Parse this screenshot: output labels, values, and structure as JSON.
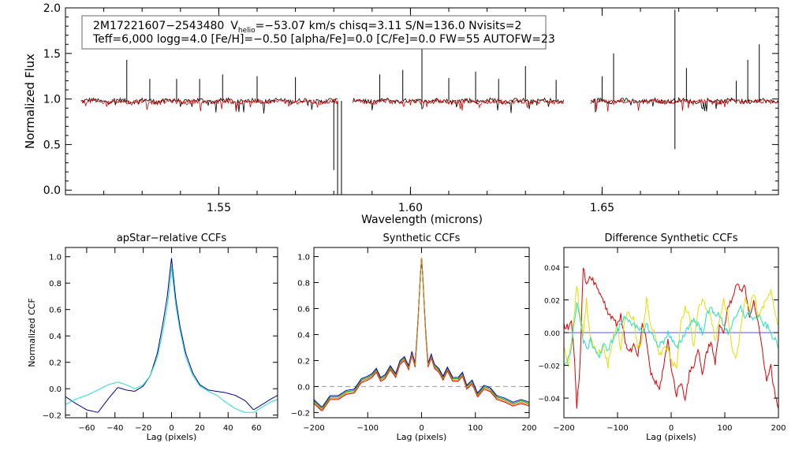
{
  "header": {
    "line1_id": "2M17221607−2543480",
    "line1_v": "V",
    "line1_v_sub": "helio",
    "line1_rest": "=−53.07 km/s  chisq=3.11  S/N=136.0  Nvisits=2",
    "line2": "Teff=6,000 logg=4.0 [Fe/H]=−0.50 [alpha/Fe]=0.0 [C/Fe]=0.0 FW=55 AUTOFW=23"
  },
  "chart_data": [
    {
      "type": "line",
      "title": "",
      "xlabel": "Wavelength (microns)",
      "ylabel": "Normalized Flux",
      "xlim": [
        1.51,
        1.696
      ],
      "ylim": [
        -0.05,
        2.0
      ],
      "xticks": [
        "1.55",
        "1.60",
        "1.65"
      ],
      "xtick_values": [
        1.55,
        1.6,
        1.65
      ],
      "yticks": [
        "0.0",
        "0.5",
        "1.0",
        "1.5",
        "2.0"
      ],
      "ytick_values": [
        0.0,
        0.5,
        1.0,
        1.5,
        2.0
      ],
      "chips": [
        [
          1.514,
          1.581
        ],
        [
          1.585,
          1.64
        ],
        [
          1.647,
          1.696
        ]
      ],
      "series": [
        {
          "color": "#000000",
          "baseline": 0.98
        },
        {
          "color": "#dd0000",
          "baseline": 0.97
        }
      ],
      "emission_spikes": [
        [
          1.526,
          1.43
        ],
        [
          1.532,
          1.22
        ],
        [
          1.539,
          1.22
        ],
        [
          1.545,
          1.22
        ],
        [
          1.551,
          1.27
        ],
        [
          1.56,
          1.25
        ],
        [
          1.57,
          1.24
        ],
        [
          1.592,
          1.27
        ],
        [
          1.598,
          1.32
        ],
        [
          1.603,
          1.55
        ],
        [
          1.61,
          1.23
        ],
        [
          1.617,
          1.3
        ],
        [
          1.623,
          1.22
        ],
        [
          1.63,
          1.36
        ],
        [
          1.638,
          1.21
        ],
        [
          1.65,
          1.25
        ],
        [
          1.653,
          1.5
        ],
        [
          1.669,
          1.98
        ],
        [
          1.672,
          1.34
        ],
        [
          1.685,
          1.2
        ],
        [
          1.688,
          1.43
        ],
        [
          1.691,
          1.6
        ]
      ],
      "absorption_spikes": [
        [
          1.581,
          -0.05
        ],
        [
          1.582,
          -0.05
        ],
        [
          1.58,
          0.22
        ],
        [
          1.669,
          0.45
        ]
      ]
    },
    {
      "type": "line",
      "title": "apStar−relative CCFs",
      "xlabel": "Lag (pixels)",
      "ylabel": "Normalized CCF",
      "xlim": [
        -75,
        75
      ],
      "ylim": [
        -0.22,
        1.07
      ],
      "xticks": [
        "−60",
        "−40",
        "−20",
        "0",
        "20",
        "40",
        "60"
      ],
      "xtick_values": [
        -60,
        -40,
        -20,
        0,
        20,
        40,
        60
      ],
      "yticks": [
        "−0.2",
        "0.0",
        "0.2",
        "0.4",
        "0.6",
        "0.8",
        "1.0"
      ],
      "ytick_values": [
        -0.2,
        0.0,
        0.2,
        0.4,
        0.6,
        0.8,
        1.0
      ],
      "series": [
        {
          "color": "#00008b",
          "x": [
            -75,
            -68,
            -60,
            -52,
            -45,
            -38,
            -32,
            -26,
            -20,
            -15,
            -10,
            -6,
            -3,
            -1,
            0,
            1,
            3,
            6,
            10,
            15,
            20,
            26,
            32,
            38,
            45,
            52,
            58,
            64,
            70,
            75
          ],
          "y": [
            -0.06,
            -0.11,
            -0.16,
            -0.18,
            -0.08,
            0.01,
            -0.01,
            -0.02,
            0.02,
            0.1,
            0.27,
            0.5,
            0.7,
            0.9,
            0.99,
            0.88,
            0.68,
            0.47,
            0.27,
            0.12,
            0.03,
            -0.01,
            -0.02,
            -0.03,
            -0.05,
            -0.09,
            -0.16,
            -0.12,
            -0.08,
            -0.05
          ]
        },
        {
          "color": "#20e0d0",
          "x": [
            -75,
            -68,
            -60,
            -52,
            -45,
            -38,
            -32,
            -26,
            -20,
            -15,
            -10,
            -6,
            -3,
            -1,
            0,
            1,
            3,
            6,
            10,
            15,
            20,
            26,
            32,
            38,
            45,
            52,
            58,
            64,
            70,
            75
          ],
          "y": [
            -0.12,
            -0.08,
            -0.05,
            -0.01,
            0.03,
            0.05,
            0.03,
            0.0,
            0.03,
            0.1,
            0.24,
            0.44,
            0.63,
            0.8,
            0.93,
            0.82,
            0.63,
            0.44,
            0.24,
            0.1,
            0.02,
            -0.02,
            -0.05,
            -0.1,
            -0.15,
            -0.18,
            -0.18,
            -0.14,
            -0.1,
            -0.08
          ]
        }
      ]
    },
    {
      "type": "line",
      "title": "Synthetic CCFs",
      "xlabel": "Lag (pixels)",
      "ylabel": "",
      "xlim": [
        -200,
        200
      ],
      "ylim": [
        -0.24,
        1.07
      ],
      "xticks": [
        "−200",
        "−100",
        "0",
        "100",
        "200"
      ],
      "xtick_values": [
        -200,
        -100,
        0,
        100,
        200
      ],
      "yticks": [
        "−0.2",
        "0.0",
        "0.2",
        "0.4",
        "0.6",
        "0.8",
        "1.0"
      ],
      "ytick_values": [
        -0.2,
        0.0,
        0.2,
        0.4,
        0.6,
        0.8,
        1.0
      ],
      "zero_line": 0.0,
      "series": [
        {
          "color": "#dd0000",
          "x": [
            -200,
            -185,
            -170,
            -155,
            -140,
            -125,
            -112,
            -100,
            -92,
            -84,
            -76,
            -68,
            -58,
            -48,
            -40,
            -32,
            -24,
            -18,
            -12,
            -7,
            -3,
            0,
            3,
            7,
            12,
            18,
            24,
            32,
            40,
            48,
            58,
            68,
            76,
            84,
            94,
            104,
            116,
            128,
            140,
            155,
            170,
            185,
            200
          ],
          "y": [
            -0.13,
            -0.19,
            -0.1,
            -0.1,
            -0.06,
            -0.05,
            0.03,
            0.05,
            0.07,
            0.11,
            0.04,
            0.06,
            0.13,
            0.07,
            0.17,
            0.2,
            0.13,
            0.24,
            0.15,
            0.46,
            0.8,
            0.99,
            0.8,
            0.44,
            0.15,
            0.22,
            0.14,
            0.11,
            0.05,
            0.12,
            0.04,
            0.04,
            0.08,
            -0.02,
            0.02,
            -0.08,
            -0.02,
            -0.04,
            -0.1,
            -0.12,
            -0.15,
            -0.13,
            -0.15
          ]
        },
        {
          "color": "#00aa00",
          "x": [
            -200,
            -185,
            -170,
            -155,
            -140,
            -125,
            -112,
            -100,
            -92,
            -84,
            -76,
            -68,
            -58,
            -48,
            -40,
            -32,
            -24,
            -18,
            -12,
            -7,
            -3,
            0,
            3,
            7,
            12,
            18,
            24,
            32,
            40,
            48,
            58,
            68,
            76,
            84,
            94,
            104,
            116,
            128,
            140,
            155,
            170,
            185,
            200
          ],
          "y": [
            -0.11,
            -0.17,
            -0.08,
            -0.08,
            -0.04,
            -0.03,
            0.05,
            0.07,
            0.09,
            0.13,
            0.06,
            0.08,
            0.15,
            0.09,
            0.19,
            0.22,
            0.15,
            0.26,
            0.17,
            0.48,
            0.8,
            0.99,
            0.8,
            0.46,
            0.17,
            0.24,
            0.16,
            0.13,
            0.07,
            0.14,
            0.06,
            0.06,
            0.1,
            0.0,
            0.04,
            -0.06,
            0.0,
            -0.02,
            -0.08,
            -0.1,
            -0.13,
            -0.11,
            -0.13
          ]
        },
        {
          "color": "#0000cc",
          "x": [
            -200,
            -185,
            -170,
            -155,
            -140,
            -125,
            -112,
            -100,
            -92,
            -84,
            -76,
            -68,
            -58,
            -48,
            -40,
            -32,
            -24,
            -18,
            -12,
            -7,
            -3,
            0,
            3,
            7,
            12,
            18,
            24,
            32,
            40,
            48,
            58,
            68,
            76,
            84,
            94,
            104,
            116,
            128,
            140,
            155,
            170,
            185,
            200
          ],
          "y": [
            -0.1,
            -0.16,
            -0.07,
            -0.07,
            -0.03,
            -0.02,
            0.06,
            0.08,
            0.1,
            0.14,
            0.07,
            0.09,
            0.16,
            0.1,
            0.2,
            0.23,
            0.16,
            0.27,
            0.18,
            0.48,
            0.8,
            0.99,
            0.8,
            0.46,
            0.18,
            0.25,
            0.17,
            0.14,
            0.08,
            0.15,
            0.07,
            0.07,
            0.11,
            0.01,
            0.05,
            -0.05,
            0.01,
            -0.01,
            -0.07,
            -0.09,
            -0.12,
            -0.1,
            -0.12
          ]
        },
        {
          "color": "#e08000",
          "x": [
            -200,
            -185,
            -170,
            -155,
            -140,
            -125,
            -112,
            -100,
            -92,
            -84,
            -76,
            -68,
            -58,
            -48,
            -40,
            -32,
            -24,
            -18,
            -12,
            -7,
            -3,
            0,
            3,
            7,
            12,
            18,
            24,
            32,
            40,
            48,
            58,
            68,
            76,
            84,
            94,
            104,
            116,
            128,
            140,
            155,
            170,
            185,
            200
          ],
          "y": [
            -0.12,
            -0.18,
            -0.09,
            -0.09,
            -0.05,
            -0.04,
            0.04,
            0.06,
            0.08,
            0.12,
            0.05,
            0.07,
            0.14,
            0.08,
            0.18,
            0.21,
            0.14,
            0.25,
            0.16,
            0.47,
            0.8,
            0.99,
            0.8,
            0.45,
            0.16,
            0.23,
            0.15,
            0.12,
            0.06,
            0.13,
            0.05,
            0.05,
            0.09,
            -0.01,
            0.03,
            -0.07,
            -0.01,
            -0.03,
            -0.09,
            -0.11,
            -0.14,
            -0.12,
            -0.14
          ]
        }
      ]
    },
    {
      "type": "line",
      "title": "Difference Synthetic CCFs",
      "xlabel": "Lag (pixels)",
      "ylabel": "",
      "xlim": [
        -200,
        200
      ],
      "ylim": [
        -0.052,
        0.052
      ],
      "xticks": [
        "−200",
        "−100",
        "0",
        "100",
        "200"
      ],
      "xtick_values": [
        -200,
        -100,
        0,
        100,
        200
      ],
      "yticks": [
        "−0.04",
        "−0.02",
        "0.00",
        "0.02",
        "0.04"
      ],
      "ytick_values": [
        -0.04,
        -0.02,
        0.0,
        0.02,
        0.04
      ],
      "series": [
        {
          "color": "#5050ff",
          "x": [
            -200,
            200
          ],
          "y": [
            0.0,
            0.0
          ]
        },
        {
          "color": "#dd0000",
          "x": [
            -200,
            -192,
            -186,
            -181,
            -176,
            -170,
            -164,
            -158,
            -150,
            -142,
            -134,
            -126,
            -118,
            -110,
            -102,
            -94,
            -86,
            -78,
            -70,
            -62,
            -54,
            -46,
            -38,
            -30,
            -22,
            -14,
            -6,
            2,
            10,
            18,
            26,
            34,
            42,
            50,
            58,
            66,
            74,
            82,
            90,
            98,
            106,
            114,
            122,
            130,
            138,
            146,
            154,
            162,
            170,
            178,
            186,
            194,
            200
          ],
          "y": [
            0.005,
            0.003,
            0.008,
            -0.01,
            -0.046,
            -0.02,
            0.04,
            0.03,
            0.035,
            0.03,
            0.025,
            0.02,
            0.012,
            0.01,
            0.005,
            0.01,
            -0.005,
            -0.012,
            -0.008,
            -0.015,
            0.004,
            -0.005,
            -0.025,
            -0.03,
            -0.035,
            -0.02,
            -0.005,
            -0.025,
            -0.038,
            -0.03,
            -0.04,
            -0.025,
            -0.02,
            -0.01,
            -0.025,
            -0.012,
            -0.005,
            -0.02,
            0.005,
            0.0,
            0.015,
            0.02,
            0.03,
            0.025,
            0.028,
            0.01,
            0.02,
            0.005,
            -0.01,
            -0.03,
            -0.02,
            -0.04,
            -0.045
          ]
        },
        {
          "color": "#e0e000",
          "x": [
            -200,
            -192,
            -186,
            -181,
            -176,
            -170,
            -164,
            -158,
            -150,
            -142,
            -134,
            -126,
            -118,
            -110,
            -102,
            -94,
            -86,
            -78,
            -70,
            -62,
            -54,
            -46,
            -38,
            -30,
            -22,
            -14,
            -6,
            2,
            10,
            18,
            26,
            34,
            42,
            50,
            58,
            66,
            74,
            82,
            90,
            98,
            106,
            114,
            122,
            130,
            138,
            146,
            154,
            162,
            170,
            178,
            186,
            194,
            200
          ],
          "y": [
            -0.01,
            -0.02,
            -0.005,
            0.01,
            0.03,
            0.01,
            0.0,
            0.02,
            -0.005,
            -0.01,
            -0.012,
            -0.008,
            -0.02,
            -0.005,
            0.005,
            -0.01,
            0.01,
            0.012,
            0.008,
            -0.01,
            -0.005,
            0.02,
            0.005,
            0.0,
            -0.015,
            -0.01,
            -0.01,
            -0.02,
            -0.02,
            0.005,
            0.015,
            0.01,
            -0.01,
            0.015,
            0.02,
            0.015,
            0.01,
            -0.005,
            0.008,
            0.02,
            0.01,
            -0.01,
            -0.015,
            0.005,
            0.02,
            0.015,
            0.025,
            0.01,
            0.015,
            0.02,
            0.025,
            0.01,
            0.005
          ]
        },
        {
          "color": "#20e0c0",
          "x": [
            -200,
            -192,
            -186,
            -181,
            -176,
            -170,
            -164,
            -158,
            -150,
            -142,
            -134,
            -126,
            -118,
            -110,
            -102,
            -94,
            -86,
            -78,
            -70,
            -62,
            -54,
            -46,
            -38,
            -30,
            -22,
            -14,
            -6,
            2,
            10,
            18,
            26,
            34,
            42,
            50,
            58,
            66,
            74,
            82,
            90,
            98,
            106,
            114,
            122,
            130,
            138,
            146,
            154,
            162,
            170,
            178,
            186,
            194,
            200
          ],
          "y": [
            -0.02,
            -0.015,
            -0.01,
            0.005,
            0.02,
            0.008,
            -0.005,
            -0.01,
            -0.005,
            -0.01,
            -0.015,
            -0.008,
            -0.01,
            -0.005,
            0.0,
            0.005,
            0.01,
            0.008,
            0.004,
            0.002,
            0.0,
            0.005,
            0.0,
            -0.005,
            -0.008,
            -0.005,
            0.0,
            -0.005,
            -0.01,
            -0.005,
            0.0,
            0.005,
            0.008,
            0.005,
            0.0,
            0.01,
            0.015,
            0.012,
            0.01,
            0.005,
            0.0,
            0.005,
            0.01,
            0.015,
            0.01,
            0.012,
            0.008,
            0.01,
            0.006,
            0.004,
            0.0,
            -0.005,
            -0.008
          ]
        }
      ]
    }
  ]
}
